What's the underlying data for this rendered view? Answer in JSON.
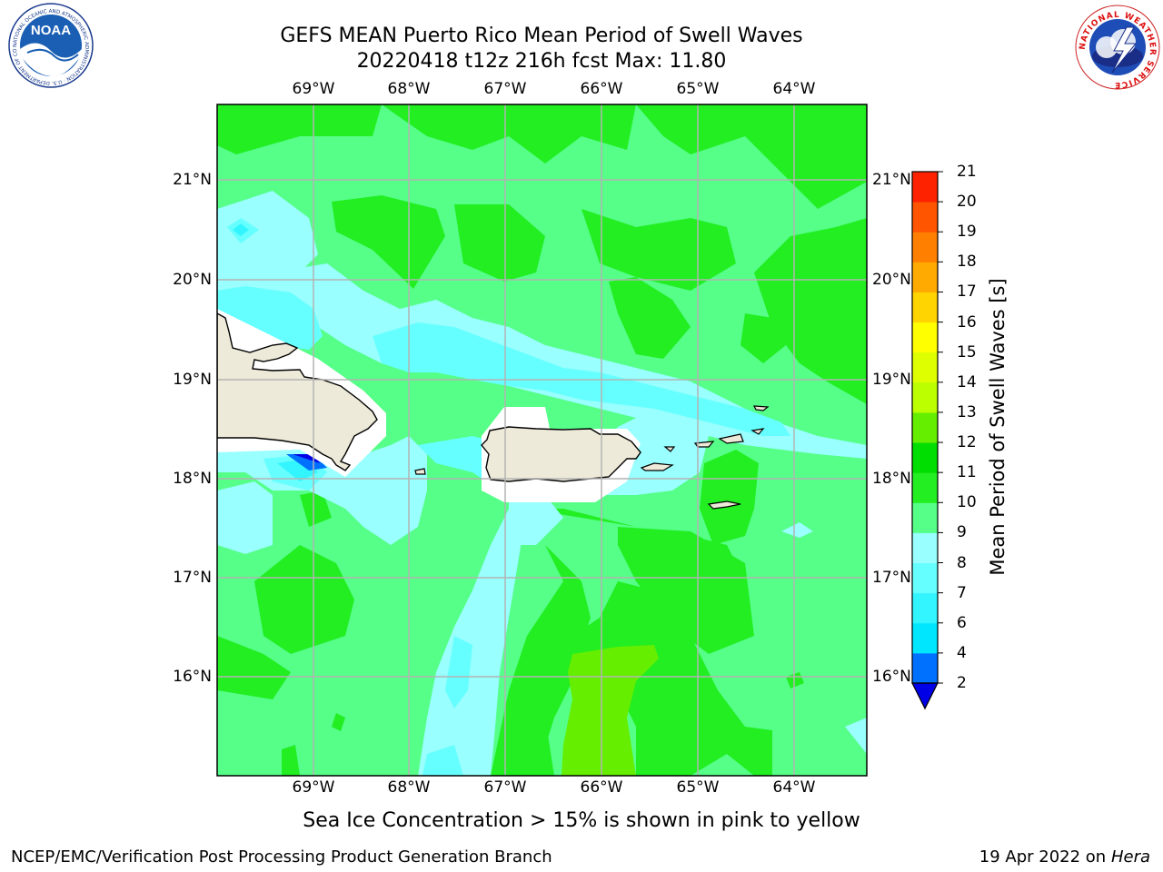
{
  "title": {
    "line1": "GEFS MEAN Puerto Rico Mean Period of Swell Waves",
    "line2": "20220418 t12z 216h fcst   Max: 11.80"
  },
  "longitudes": [
    "69°W",
    "68°W",
    "67°W",
    "66°W",
    "65°W",
    "64°W"
  ],
  "latitudes": [
    "21°N",
    "20°N",
    "19°N",
    "18°N",
    "17°N",
    "16°N"
  ],
  "colorbar": {
    "label": "Mean Period of Swell Waves [s]",
    "ticks": [
      "2",
      "4",
      "6",
      "7",
      "8",
      "9",
      "10",
      "11",
      "12",
      "13",
      "14",
      "15",
      "16",
      "17",
      "18",
      "19",
      "20",
      "21"
    ],
    "levels": [
      2,
      4,
      6,
      7,
      8,
      9,
      10,
      11,
      12,
      13,
      14,
      15,
      16,
      17,
      18,
      19,
      20,
      21
    ],
    "colors": [
      "#0000e6",
      "#0070ff",
      "#00e6ff",
      "#33f5ff",
      "#66ffff",
      "#99ffff",
      "#55ff88",
      "#22ee22",
      "#00dd00",
      "#66ee00",
      "#bbff00",
      "#ddff00",
      "#ffff00",
      "#ffd400",
      "#ffaa00",
      "#ff8000",
      "#ff5500",
      "#ff2200",
      "#ff0000"
    ]
  },
  "subtitle": "Sea Ice Concentration > 15% is shown in pink to yellow",
  "footer": {
    "left": "NCEP/EMC/Verification Post Processing Product Generation Branch",
    "right_date": "19 Apr 2022 on ",
    "right_host": "Hera"
  },
  "logos": {
    "noaa_text": "NOAA",
    "noaa_ring": "NATIONAL OCEANIC AND ATMOSPHERIC ADMINISTRATION · U.S. DEPARTMENT OF COMMERCE",
    "nws_ring": "NATIONAL WEATHER SERVICE"
  }
}
